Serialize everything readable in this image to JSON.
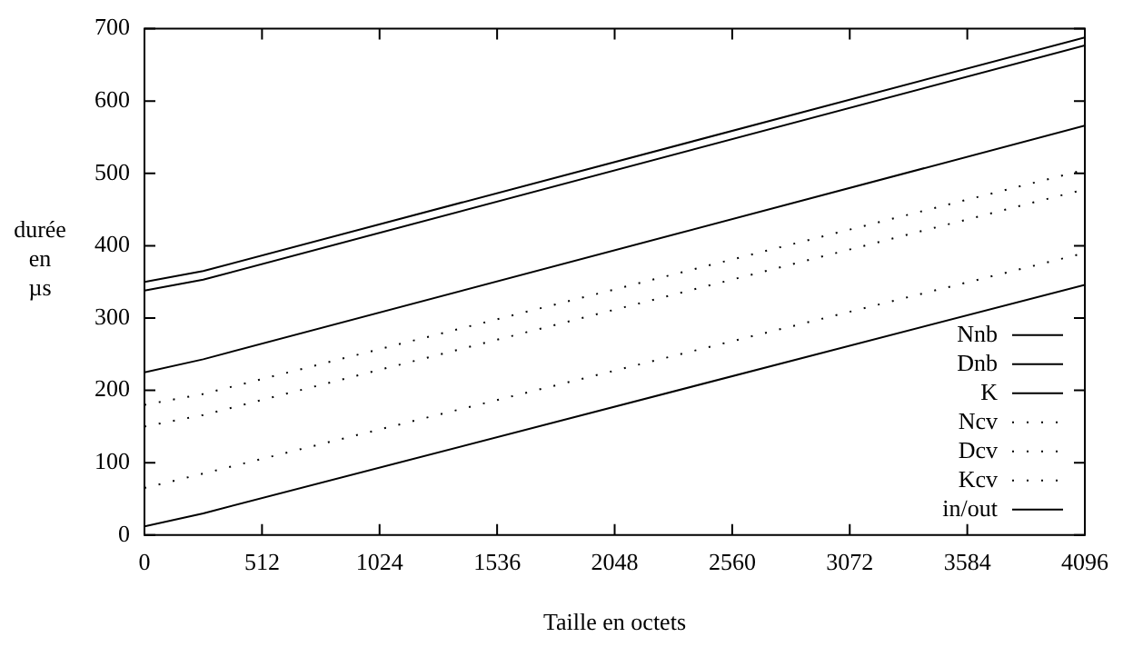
{
  "chart_data": {
    "type": "line",
    "xlabel": "Taille en octets",
    "ylabel": "durée en µs",
    "x": [
      0,
      256,
      4096
    ],
    "series": [
      {
        "name": "Nnb",
        "color": "#000000",
        "line_style": "solid",
        "values": [
          350,
          365,
          688
        ]
      },
      {
        "name": "Dnb",
        "color": "#000000",
        "line_style": "solid",
        "values": [
          338,
          353,
          677
        ]
      },
      {
        "name": "K",
        "color": "#000000",
        "line_style": "solid",
        "values": [
          225,
          243,
          566
        ]
      },
      {
        "name": "Ncv",
        "color": "#000000",
        "line_style": "dotted",
        "values": [
          180,
          195,
          505
        ]
      },
      {
        "name": "Dcv",
        "color": "#000000",
        "line_style": "dotted",
        "values": [
          150,
          166,
          478
        ]
      },
      {
        "name": "Kcv",
        "color": "#000000",
        "line_style": "dotted",
        "values": [
          65,
          85,
          390
        ]
      },
      {
        "name": "in/out",
        "color": "#000000",
        "line_style": "solid",
        "values": [
          12,
          30,
          346
        ]
      }
    ],
    "xlim": [
      0,
      4096
    ],
    "xticks": [
      0,
      512,
      1024,
      1536,
      2048,
      2560,
      3072,
      3584,
      4096
    ],
    "ylim": [
      0,
      700
    ],
    "yticks": [
      0,
      100,
      200,
      300,
      400,
      500,
      600,
      700
    ],
    "grid": false,
    "legend": "bottom right",
    "marker": "none"
  }
}
